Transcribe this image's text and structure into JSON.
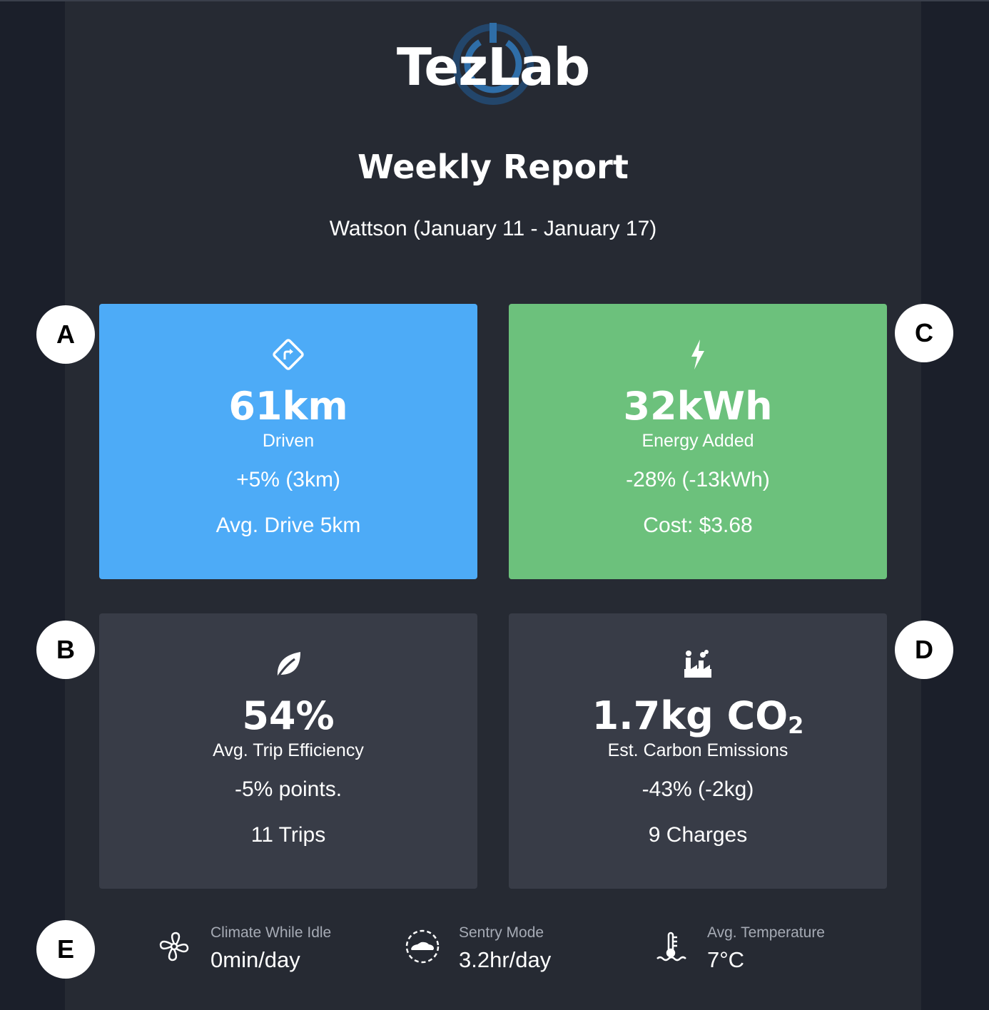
{
  "brand": {
    "name": "TezLab",
    "accent": "#2f6ea8"
  },
  "report": {
    "title": "Weekly Report",
    "subtitle": "Wattson (January 11 - January 17)"
  },
  "markers": [
    "A",
    "B",
    "C",
    "D",
    "E"
  ],
  "cards": {
    "distance": {
      "icon": "route-sign-icon",
      "value": "61km",
      "label": "Driven",
      "change": "+5% (3km)",
      "extra": "Avg. Drive 5km",
      "color": "#4dabf7"
    },
    "energy": {
      "icon": "lightning-bolt-icon",
      "value": "32kWh",
      "label": "Energy Added",
      "change": "-28% (-13kWh)",
      "extra": "Cost: $3.68",
      "color": "#6cc17c"
    },
    "efficiency": {
      "icon": "leaf-icon",
      "value": "54%",
      "label": "Avg. Trip Efficiency",
      "change": "-5% points.",
      "extra": "11 Trips",
      "color": "#383c47"
    },
    "emissions": {
      "icon": "factory-icon",
      "value": "1.7kg CO",
      "value_sub": "2",
      "label": "Est. Carbon Emissions",
      "change": "-43% (-2kg)",
      "extra": "9 Charges",
      "color": "#383c47"
    }
  },
  "stats": [
    {
      "icon": "fan-icon",
      "label": "Climate While Idle",
      "value": "0min/day"
    },
    {
      "icon": "sentry-car-icon",
      "label": "Sentry Mode",
      "value": "3.2hr/day"
    },
    {
      "icon": "thermometer-icon",
      "label": "Avg. Temperature",
      "value": "7°C"
    }
  ]
}
